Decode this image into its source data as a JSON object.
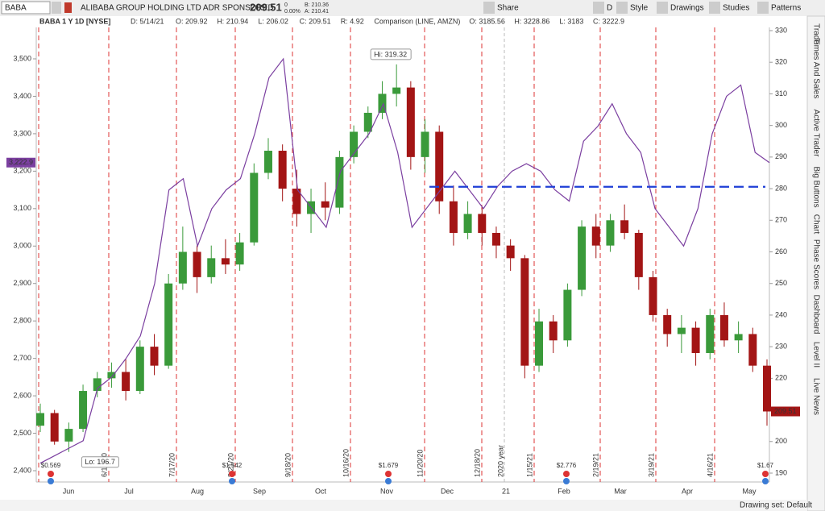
{
  "toolbar": {
    "symbol": "BABA",
    "company": "ALIBABA GROUP HOLDING LTD ADR SPONSORED",
    "last": "209.51",
    "change": "0",
    "change_pct": "0.00%",
    "bid": "B: 210.36",
    "ask": "A: 210.41",
    "buttons": [
      "Share",
      "D",
      "Style",
      "Drawings",
      "Studies",
      "Patterns"
    ]
  },
  "header": {
    "study": "BABA 1 Y 1D [NYSE]",
    "fields": [
      "D: 5/14/21",
      "O: 209.92",
      "H: 210.94",
      "L: 206.02",
      "C: 209.51",
      "R: 4.92"
    ],
    "comparison": "Comparison (LINE, AMZN)",
    "comparison_fields": [
      "O: 3185.56",
      "H: 3228.86",
      "L: 3183",
      "C: 3222.9"
    ]
  },
  "chart": {
    "ylim": [
      190,
      330
    ],
    "yticks": [
      190,
      200,
      210,
      220,
      230,
      240,
      250,
      260,
      270,
      280,
      290,
      300,
      310,
      320,
      330
    ],
    "y2lim": [
      2400,
      3500
    ],
    "y2ticks": [
      {
        "value": 2400,
        "label": "2,400"
      },
      {
        "value": 2500,
        "label": "2,500"
      },
      {
        "value": 2600,
        "label": "2,600"
      },
      {
        "value": 2700,
        "label": "2,700"
      },
      {
        "value": 2800,
        "label": "2,800"
      },
      {
        "value": 2900,
        "label": "2,900"
      },
      {
        "value": 3000,
        "label": "3,000"
      },
      {
        "value": 3100,
        "label": "3,100"
      },
      {
        "value": 3200,
        "label": "3,200"
      },
      {
        "value": 3300,
        "label": "3,300"
      },
      {
        "value": 3400,
        "label": "3,400"
      },
      {
        "value": 3500,
        "label": "3,500"
      }
    ],
    "months": [
      "Jun",
      "Jul",
      "Aug",
      "Sep",
      "Oct",
      "Nov",
      "Dec",
      "21",
      "Feb",
      "Mar",
      "Apr",
      "May"
    ],
    "events": [
      "6/19/20",
      "7/17/20",
      "8/21/20",
      "9/18/20",
      "10/16/20",
      "11/20/20",
      "12/18/20",
      "1/15/21",
      "2/19/21",
      "3/19/21",
      "4/16/21"
    ],
    "year_marker": "2020 year",
    "dividends": [
      "$0.569",
      "$1.542",
      "$1.679",
      "$2.776",
      "$1.67"
    ],
    "up_color": "#3a9a3a",
    "down_color": "#a31515",
    "candles": [
      [
        205,
        212,
        203,
        209
      ],
      [
        209,
        210,
        199,
        200
      ],
      [
        200,
        206,
        196.7,
        204
      ],
      [
        204,
        218,
        203,
        216
      ],
      [
        216,
        222,
        214,
        220
      ],
      [
        220,
        225,
        217,
        222
      ],
      [
        222,
        226,
        213,
        216
      ],
      [
        216,
        232,
        215,
        230
      ],
      [
        230,
        234,
        221,
        224
      ],
      [
        224,
        253,
        223,
        250
      ],
      [
        250,
        268,
        248,
        260
      ],
      [
        260,
        262,
        247,
        252
      ],
      [
        252,
        262,
        250,
        258
      ],
      [
        258,
        264,
        253,
        256
      ],
      [
        256,
        266,
        254,
        263
      ],
      [
        263,
        288,
        262,
        285
      ],
      [
        285,
        296,
        283,
        292
      ],
      [
        292,
        294,
        276,
        280
      ],
      [
        280,
        286,
        268,
        272
      ],
      [
        272,
        280,
        266,
        276
      ],
      [
        276,
        282,
        270,
        274
      ],
      [
        274,
        292,
        272,
        290
      ],
      [
        290,
        300,
        288,
        298
      ],
      [
        298,
        306,
        296,
        304
      ],
      [
        304,
        314,
        302,
        310
      ],
      [
        310,
        319.32,
        306,
        312
      ],
      [
        312,
        314,
        286,
        290
      ],
      [
        290,
        302,
        285,
        298
      ],
      [
        298,
        300,
        272,
        276
      ],
      [
        276,
        281,
        262,
        266
      ],
      [
        266,
        276,
        264,
        272
      ],
      [
        272,
        274,
        262,
        266
      ],
      [
        266,
        268,
        258,
        262
      ],
      [
        262,
        264,
        254,
        258
      ],
      [
        258,
        259,
        220,
        224
      ],
      [
        224,
        242,
        222,
        238
      ],
      [
        238,
        240,
        228,
        232
      ],
      [
        232,
        250,
        230,
        248
      ],
      [
        248,
        270,
        246,
        268
      ],
      [
        268,
        272,
        258,
        262
      ],
      [
        262,
        272,
        260,
        270
      ],
      [
        270,
        275,
        264,
        266
      ],
      [
        266,
        267,
        248,
        252
      ],
      [
        252,
        254,
        238,
        240
      ],
      [
        240,
        242,
        230,
        234
      ],
      [
        234,
        240,
        228,
        236
      ],
      [
        236,
        238,
        224,
        228
      ],
      [
        228,
        242,
        226,
        240
      ],
      [
        240,
        244,
        230,
        232
      ],
      [
        232,
        238,
        228,
        234
      ],
      [
        234,
        236,
        222,
        224
      ],
      [
        224,
        226,
        205,
        209.51
      ]
    ],
    "comparison": {
      "name": "AMZN",
      "color": "#7b3fa0",
      "axis": "y2",
      "values": [
        2420,
        2440,
        2460,
        2480,
        2620,
        2650,
        2700,
        2760,
        2900,
        3150,
        3180,
        3000,
        3100,
        3150,
        3180,
        3300,
        3450,
        3500,
        3150,
        3100,
        3050,
        3200,
        3250,
        3300,
        3380,
        3250,
        3050,
        3100,
        3150,
        3200,
        3150,
        3100,
        3160,
        3200,
        3220,
        3200,
        3150,
        3120,
        3280,
        3320,
        3380,
        3300,
        3250,
        3100,
        3050,
        3000,
        3100,
        3300,
        3400,
        3430,
        3250,
        3222.9
      ]
    },
    "hi_label": "Hi: 319.32",
    "lo_label": "Lo: 196.7",
    "hline": {
      "value": 280.6,
      "color": "#1f3fd6"
    },
    "last_tag": "209.51",
    "comparison_tag": "3,222.9"
  },
  "sidebar": [
    "Trade",
    "Times And Sales",
    "Active Trader",
    "Big Buttons",
    "Chart",
    "Phase Scores",
    "Dashboard",
    "Level II",
    "Live News"
  ],
  "status": "Drawing set: Default"
}
